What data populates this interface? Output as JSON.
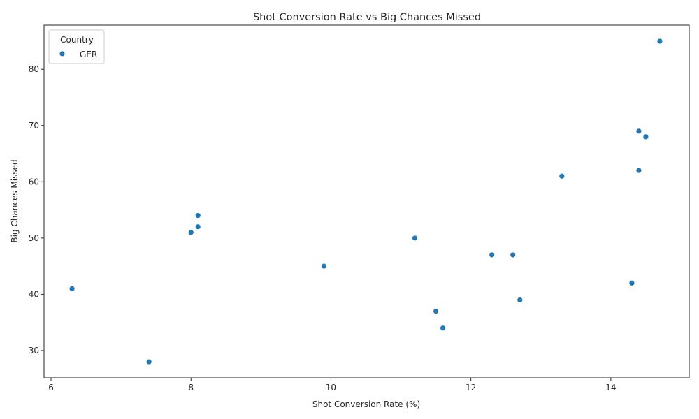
{
  "chart_data": {
    "type": "scatter",
    "title": "Shot Conversion Rate vs Big Chances Missed",
    "xlabel": "Shot Conversion Rate (%)",
    "ylabel": "Big Chances Missed",
    "xlim": [
      5.9,
      15.12
    ],
    "ylim": [
      25.15,
      87.85
    ],
    "xticks": [
      6,
      8,
      10,
      12,
      14
    ],
    "yticks": [
      30,
      40,
      50,
      60,
      70,
      80
    ],
    "grid": false,
    "legend": {
      "title": "Country",
      "placement": "top-left",
      "entries": [
        "GER"
      ]
    },
    "series": [
      {
        "name": "GER",
        "color": "#1f77b4",
        "points": [
          {
            "x": 14.7,
            "y": 85
          },
          {
            "x": 14.4,
            "y": 69
          },
          {
            "x": 14.5,
            "y": 68
          },
          {
            "x": 14.4,
            "y": 62
          },
          {
            "x": 13.3,
            "y": 61
          },
          {
            "x": 8.1,
            "y": 54
          },
          {
            "x": 8.1,
            "y": 52
          },
          {
            "x": 8.0,
            "y": 51
          },
          {
            "x": 11.2,
            "y": 50
          },
          {
            "x": 12.3,
            "y": 47
          },
          {
            "x": 12.6,
            "y": 47
          },
          {
            "x": 9.9,
            "y": 45
          },
          {
            "x": 14.3,
            "y": 42
          },
          {
            "x": 6.3,
            "y": 41
          },
          {
            "x": 12.7,
            "y": 39
          },
          {
            "x": 11.5,
            "y": 37
          },
          {
            "x": 11.6,
            "y": 34
          },
          {
            "x": 7.4,
            "y": 28
          }
        ]
      }
    ]
  }
}
